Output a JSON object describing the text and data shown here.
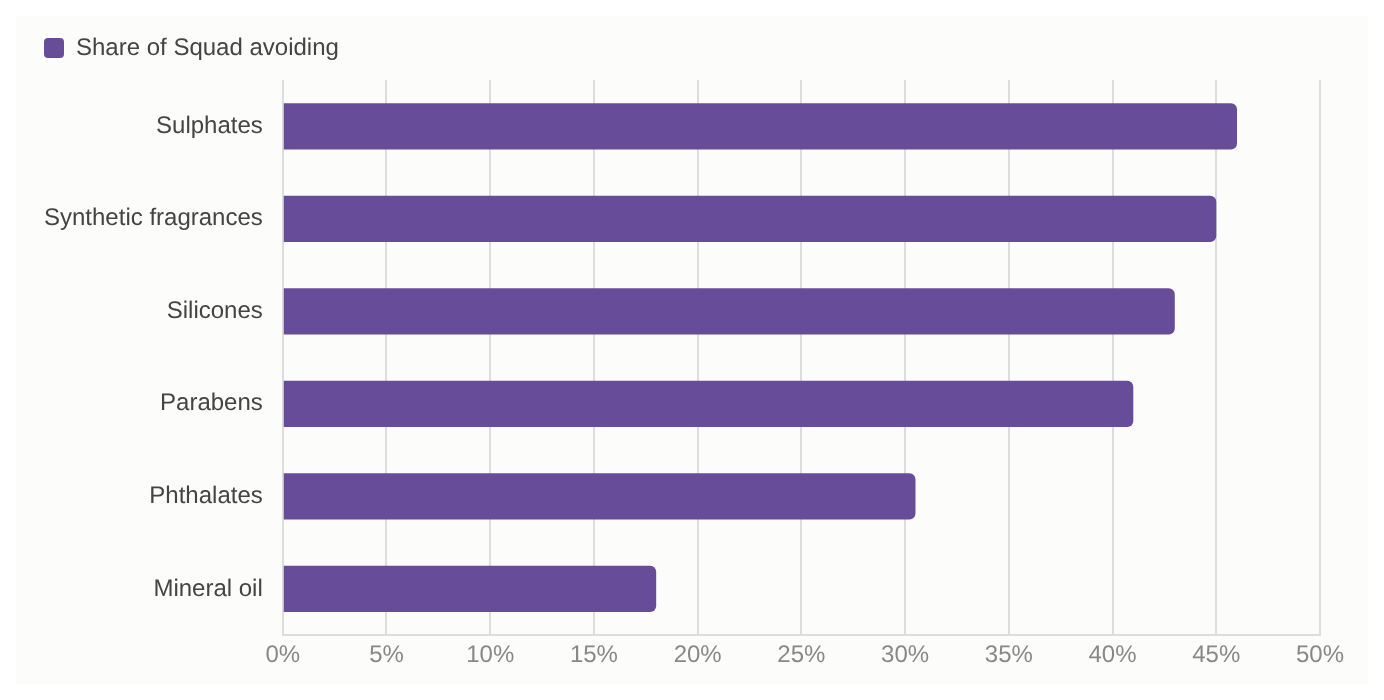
{
  "chart_data": {
    "type": "bar",
    "orientation": "horizontal",
    "categories": [
      "Sulphates",
      "Synthetic fragrances",
      "Silicones",
      "Parabens",
      "Phthalates",
      "Mineral oil"
    ],
    "series": [
      {
        "name": "Share of Squad avoiding",
        "color": "#674c9a",
        "values": [
          46,
          45,
          43,
          41,
          30.5,
          18
        ]
      }
    ],
    "xlim": [
      0,
      50
    ],
    "xticks": [
      {
        "value": 0,
        "label": "0%"
      },
      {
        "value": 5,
        "label": "5%"
      },
      {
        "value": 10,
        "label": "10%"
      },
      {
        "value": 15,
        "label": "15%"
      },
      {
        "value": 20,
        "label": "20%"
      },
      {
        "value": 25,
        "label": "25%"
      },
      {
        "value": 30,
        "label": "30%"
      },
      {
        "value": 35,
        "label": "35%"
      },
      {
        "value": 40,
        "label": "40%"
      },
      {
        "value": 45,
        "label": "45%"
      },
      {
        "value": 50,
        "label": "50%"
      }
    ],
    "grid": "x",
    "legend": "top left"
  }
}
